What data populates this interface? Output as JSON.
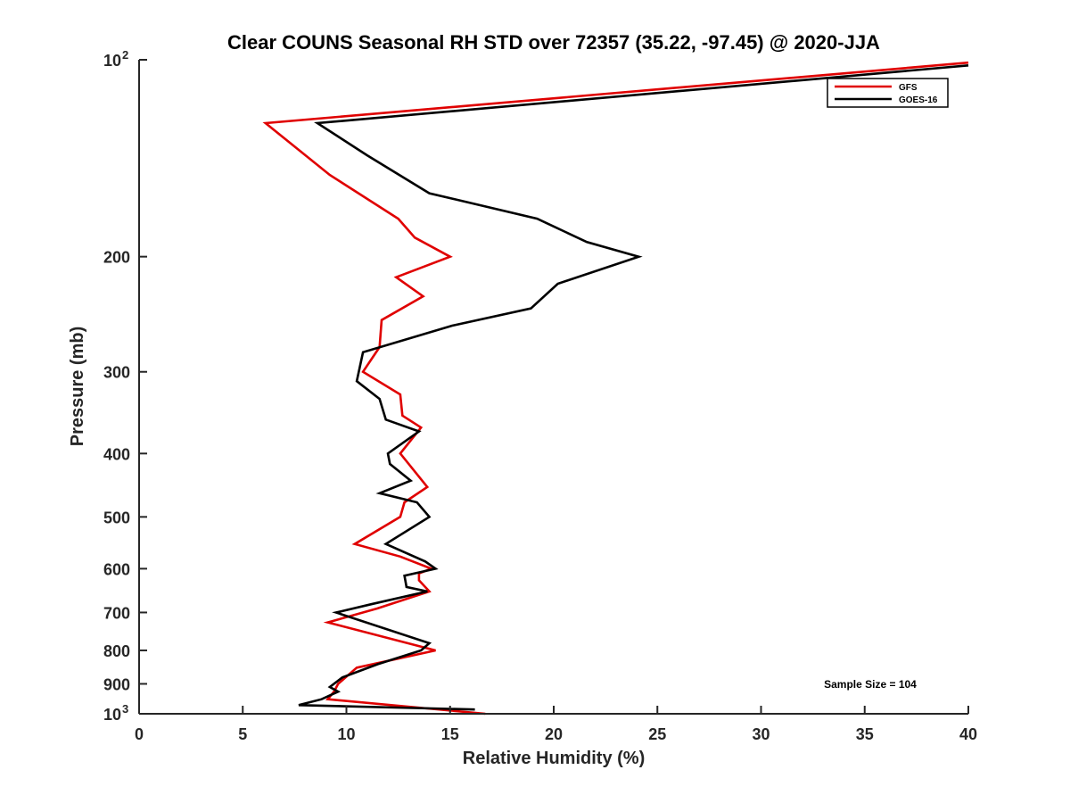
{
  "chart_data": {
    "type": "line",
    "title": "Clear COUNS Seasonal RH STD over 72357 (35.22, -97.45) @ 2020-JJA",
    "xlabel": "Relative Humidity (%)",
    "ylabel": "Pressure (mb)",
    "xlim": [
      0,
      40
    ],
    "ylim": [
      100,
      1000
    ],
    "yscale": "log",
    "yreversed": true,
    "xticks": [
      0,
      5,
      10,
      15,
      20,
      25,
      30,
      35,
      40
    ],
    "yticks": [
      {
        "value": 100,
        "label": "10",
        "sup": "2"
      },
      {
        "value": 200,
        "label": "200"
      },
      {
        "value": 300,
        "label": "300"
      },
      {
        "value": 400,
        "label": "400"
      },
      {
        "value": 500,
        "label": "500"
      },
      {
        "value": 600,
        "label": "600"
      },
      {
        "value": 700,
        "label": "700"
      },
      {
        "value": 800,
        "label": "800"
      },
      {
        "value": 900,
        "label": "900"
      },
      {
        "value": 1000,
        "label": "10",
        "sup": "3"
      }
    ],
    "annotation": "Sample Size = 104",
    "legend_position": "top-right",
    "series": [
      {
        "name": "GFS",
        "color": "#e00000",
        "points": [
          [
            40.0,
            101
          ],
          [
            6.1,
            125
          ],
          [
            9.2,
            150
          ],
          [
            12.5,
            175
          ],
          [
            13.3,
            187
          ],
          [
            15.0,
            200
          ],
          [
            12.4,
            215
          ],
          [
            13.7,
            230
          ],
          [
            11.7,
            250
          ],
          [
            11.6,
            275
          ],
          [
            10.8,
            300
          ],
          [
            12.6,
            325
          ],
          [
            12.7,
            350
          ],
          [
            13.6,
            365
          ],
          [
            12.6,
            400
          ],
          [
            13.9,
            450
          ],
          [
            12.8,
            475
          ],
          [
            12.6,
            500
          ],
          [
            10.4,
            550
          ],
          [
            12.6,
            575
          ],
          [
            14.1,
            600
          ],
          [
            13.5,
            610
          ],
          [
            13.5,
            625
          ],
          [
            14.0,
            650
          ],
          [
            11.5,
            690
          ],
          [
            9.1,
            725
          ],
          [
            14.3,
            800
          ],
          [
            10.5,
            850
          ],
          [
            9.6,
            900
          ],
          [
            9.4,
            925
          ],
          [
            9.1,
            950
          ],
          [
            16.7,
            1000
          ]
        ]
      },
      {
        "name": "GOES-16",
        "color": "#000000",
        "points": [
          [
            40.0,
            102
          ],
          [
            8.6,
            125
          ],
          [
            11.0,
            140
          ],
          [
            14.0,
            160
          ],
          [
            19.2,
            175
          ],
          [
            21.6,
            190
          ],
          [
            24.1,
            200
          ],
          [
            20.2,
            220
          ],
          [
            18.9,
            240
          ],
          [
            15.1,
            255
          ],
          [
            10.8,
            280
          ],
          [
            10.5,
            310
          ],
          [
            11.6,
            330
          ],
          [
            11.9,
            355
          ],
          [
            13.5,
            370
          ],
          [
            12.0,
            400
          ],
          [
            12.1,
            415
          ],
          [
            13.1,
            440
          ],
          [
            11.6,
            460
          ],
          [
            13.4,
            475
          ],
          [
            14.0,
            500
          ],
          [
            11.9,
            550
          ],
          [
            13.8,
            585
          ],
          [
            14.3,
            600
          ],
          [
            12.8,
            615
          ],
          [
            12.9,
            640
          ],
          [
            13.9,
            650
          ],
          [
            11.2,
            680
          ],
          [
            9.5,
            700
          ],
          [
            14.0,
            780
          ],
          [
            13.6,
            800
          ],
          [
            11.5,
            840
          ],
          [
            9.8,
            880
          ],
          [
            9.2,
            910
          ],
          [
            9.6,
            925
          ],
          [
            8.8,
            950
          ],
          [
            7.7,
            970
          ],
          [
            16.2,
            985
          ]
        ]
      }
    ]
  }
}
